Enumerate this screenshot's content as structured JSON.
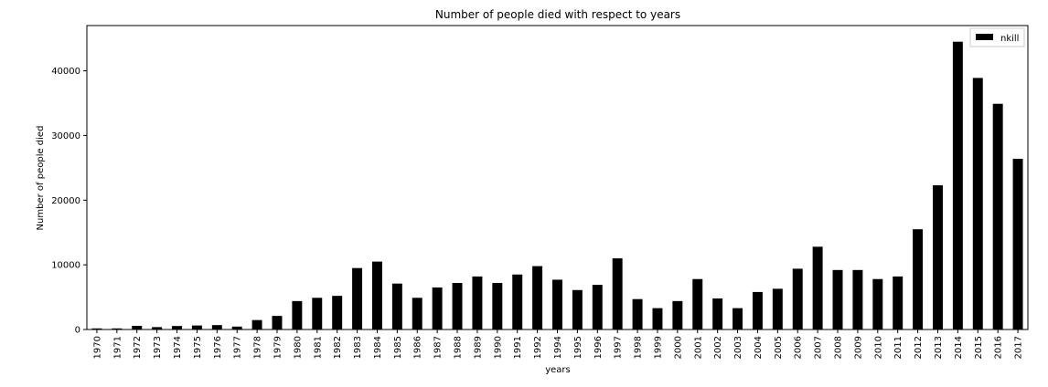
{
  "chart_data": {
    "type": "bar",
    "title": "Number of people died with respect to years",
    "xlabel": "years",
    "ylabel": "Number of people died",
    "ylim": [
      0,
      47000
    ],
    "y_ticks": [
      0,
      10000,
      20000,
      30000,
      40000
    ],
    "legend": {
      "position": "top-right"
    },
    "grid": false,
    "categories": [
      "1970",
      "1971",
      "1972",
      "1973",
      "1974",
      "1975",
      "1976",
      "1977",
      "1978",
      "1979",
      "1980",
      "1981",
      "1982",
      "1983",
      "1984",
      "1985",
      "1986",
      "1987",
      "1988",
      "1989",
      "1990",
      "1991",
      "1992",
      "1994",
      "1995",
      "1996",
      "1997",
      "1998",
      "1999",
      "2000",
      "2001",
      "2002",
      "2003",
      "2004",
      "2005",
      "2006",
      "2007",
      "2008",
      "2009",
      "2010",
      "2011",
      "2012",
      "2013",
      "2014",
      "2015",
      "2016",
      "2017"
    ],
    "series": [
      {
        "name": "nkill",
        "color": "#000000",
        "values": [
          170,
          170,
          560,
          370,
          540,
          620,
          680,
          450,
          1460,
          2100,
          4400,
          4900,
          5200,
          9500,
          10500,
          7100,
          4900,
          6500,
          7200,
          8200,
          7200,
          8500,
          9800,
          7700,
          6100,
          6900,
          11000,
          4700,
          3300,
          4400,
          7800,
          4800,
          3300,
          5800,
          6300,
          9400,
          12800,
          9200,
          9200,
          7800,
          8200,
          15500,
          22300,
          44500,
          38900,
          34900,
          26400
        ]
      }
    ]
  }
}
